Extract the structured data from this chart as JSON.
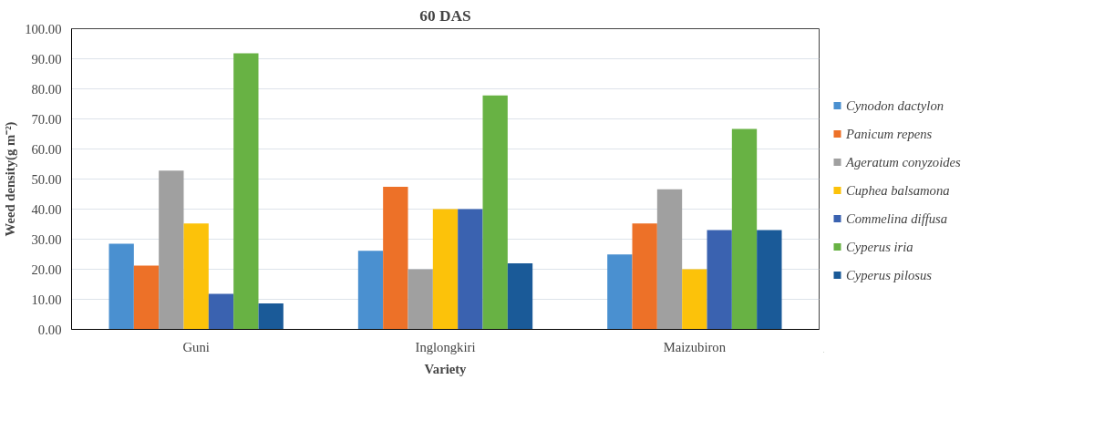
{
  "chart_data": {
    "type": "bar",
    "title": "60 DAS",
    "xlabel": "Variety",
    "ylabel": "Weed density(g m⁻²)",
    "categories": [
      "Guni",
      "Inglongkiri",
      "Maizubiron"
    ],
    "series": [
      {
        "name": "Cynodon dactylon",
        "color": "#4a90d0",
        "values": [
          28.5,
          26.1,
          24.9
        ]
      },
      {
        "name": "Panicum repens",
        "color": "#ed7128",
        "values": [
          21.2,
          47.4,
          35.2
        ]
      },
      {
        "name": "Ageratum conyzoides",
        "color": "#a0a0a0",
        "values": [
          52.8,
          20.0,
          46.6
        ]
      },
      {
        "name": "Cuphea balsamona",
        "color": "#fcc20a",
        "values": [
          35.2,
          40.0,
          20.0
        ]
      },
      {
        "name": "Commelina diffusa",
        "color": "#3a62b0",
        "values": [
          11.8,
          40.0,
          33.0
        ]
      },
      {
        "name": "Cyperus iria",
        "color": "#68b244",
        "values": [
          91.8,
          77.8,
          66.7
        ]
      },
      {
        "name": "Cyperus pilosus",
        "color": "#1a5a98",
        "values": [
          8.6,
          22.0,
          33.0
        ]
      }
    ],
    "ylim": [
      0,
      100
    ],
    "yticks": [
      {
        "value": 0,
        "label": "0.00"
      },
      {
        "value": 10,
        "label": "10.00"
      },
      {
        "value": 20,
        "label": "20.00"
      },
      {
        "value": 30,
        "label": "30.00"
      },
      {
        "value": 40,
        "label": "40.00"
      },
      {
        "value": 50,
        "label": "50.00"
      },
      {
        "value": 60,
        "label": "60.00"
      },
      {
        "value": 70,
        "label": "70.00"
      },
      {
        "value": 80,
        "label": "80.00"
      },
      {
        "value": 90,
        "label": "90.00"
      },
      {
        "value": 100,
        "label": "100.00"
      }
    ],
    "grid": "y",
    "legend": "right"
  }
}
